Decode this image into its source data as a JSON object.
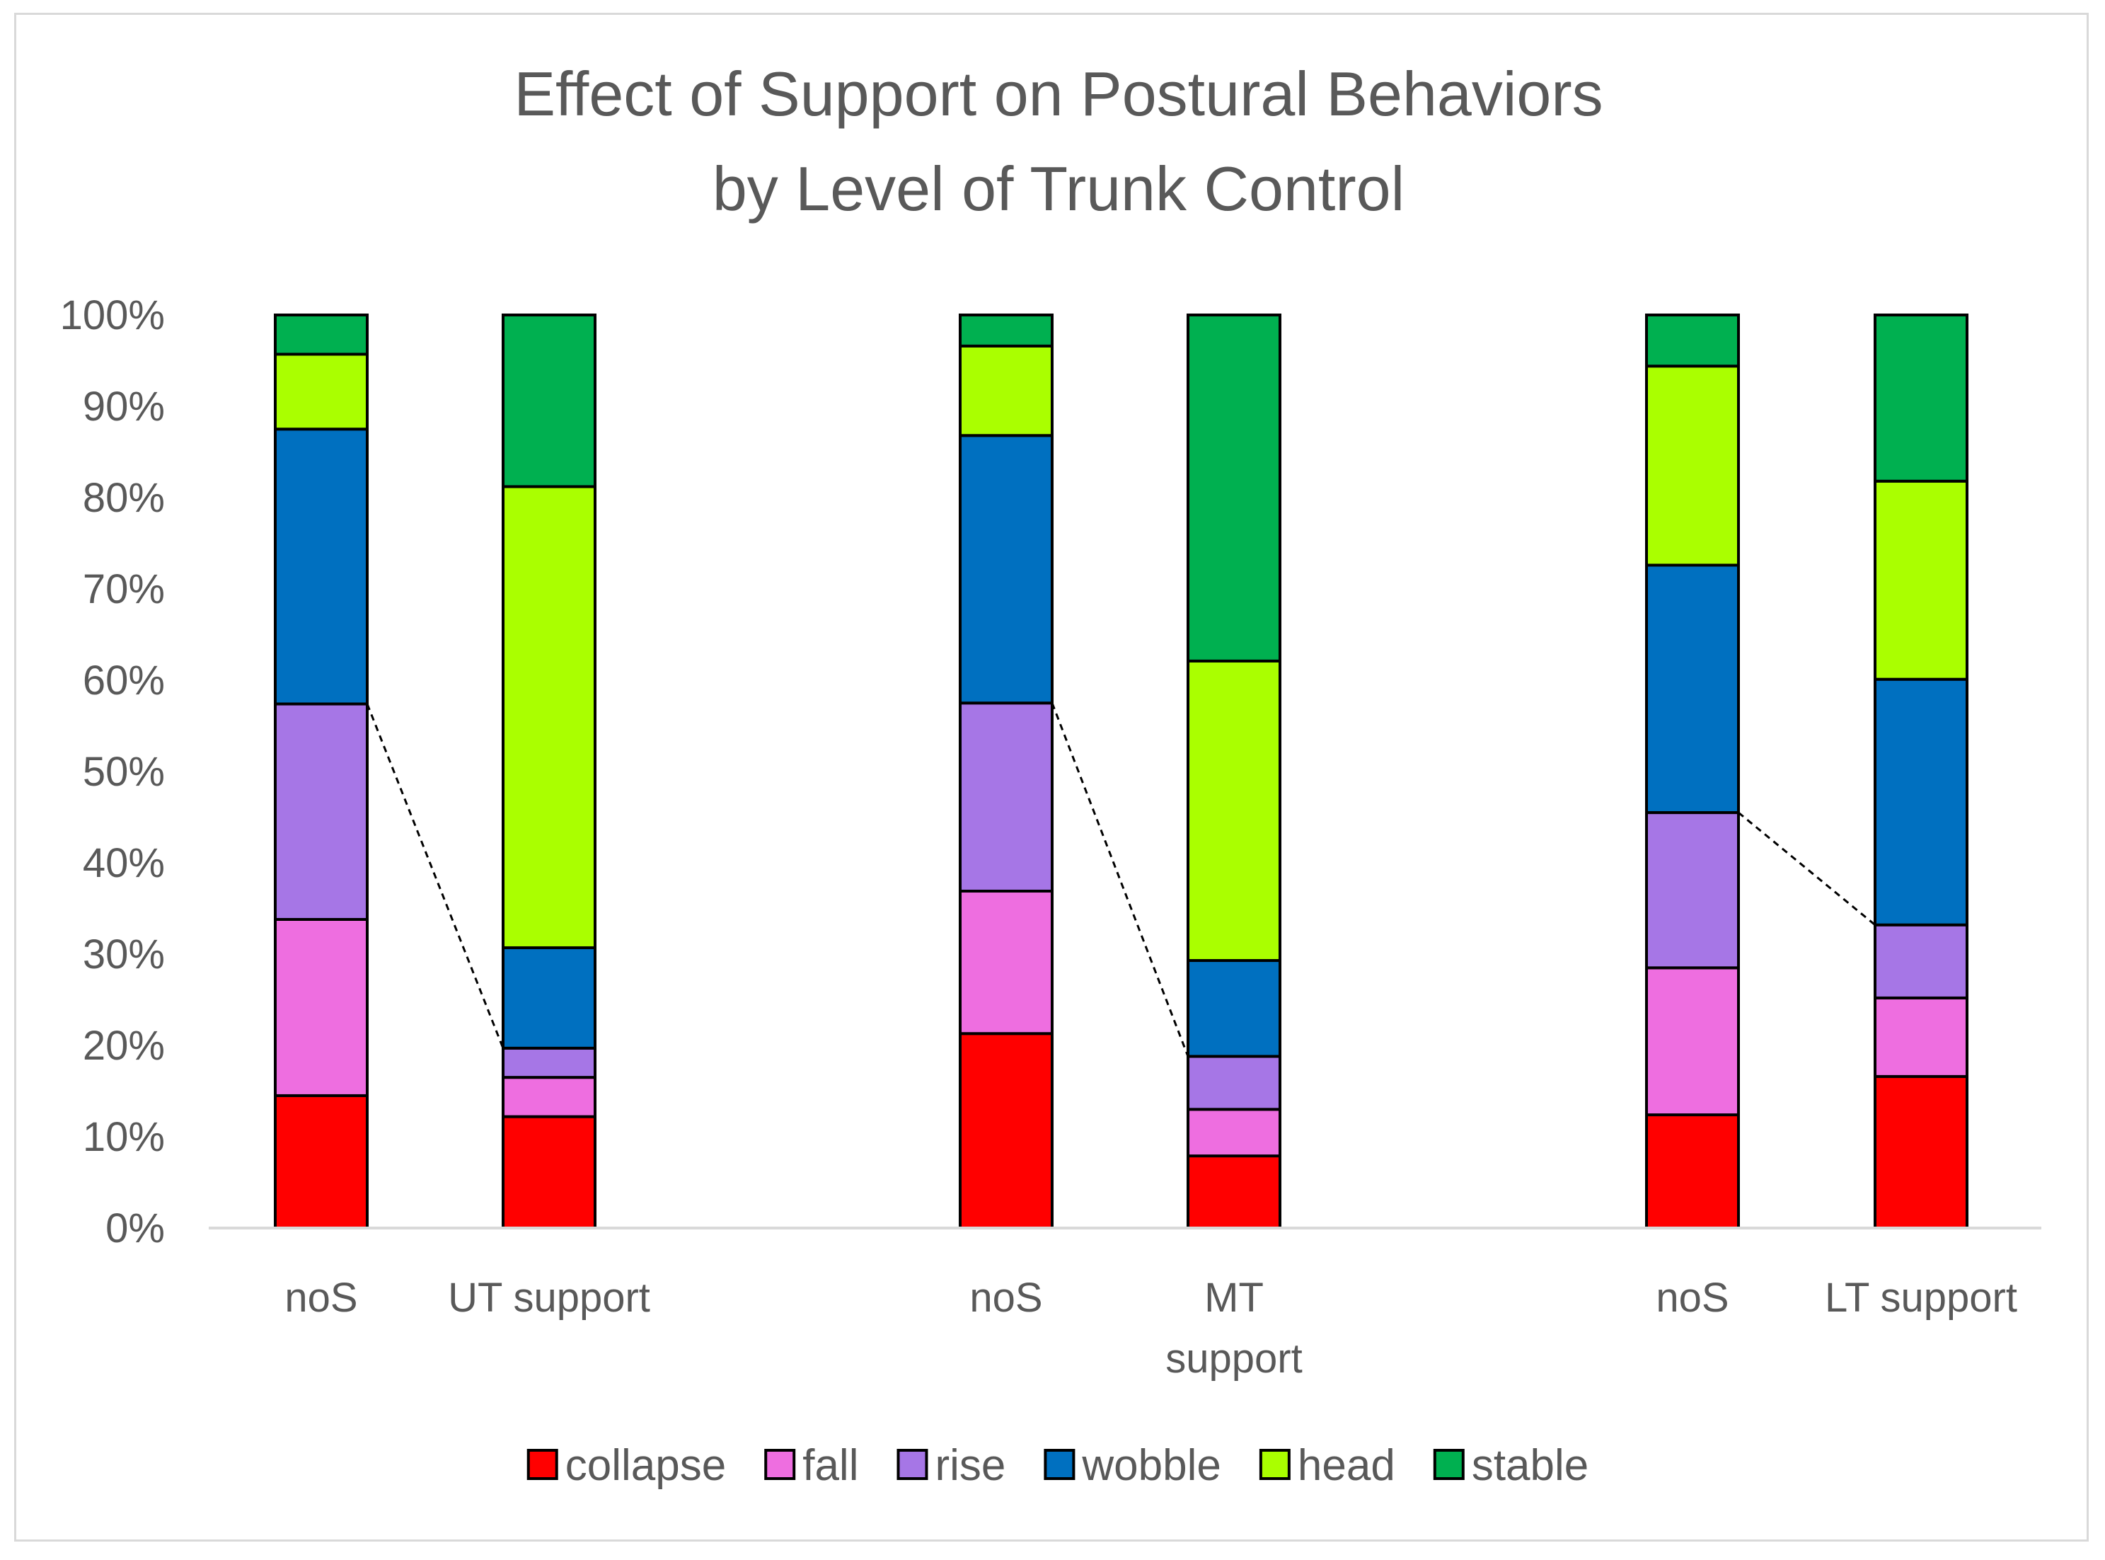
{
  "chart_data": {
    "type": "bar",
    "stacked": true,
    "normalized": true,
    "title": [
      "Effect of Support on Postural Behaviors",
      "by Level of Trunk Control"
    ],
    "ylim": [
      0,
      100
    ],
    "yticks": [
      "0%",
      "10%",
      "20%",
      "30%",
      "40%",
      "50%",
      "60%",
      "70%",
      "80%",
      "90%",
      "100%"
    ],
    "categories": [
      [
        "noS"
      ],
      [
        "UT support"
      ],
      [
        "noS"
      ],
      [
        "MT",
        "support"
      ],
      [
        "noS"
      ],
      [
        "LT support"
      ]
    ],
    "groups": [
      [
        0,
        1
      ],
      [
        2,
        3
      ],
      [
        4,
        5
      ]
    ],
    "series": [
      {
        "name": "collapse",
        "color": "#ff0000",
        "values": [
          14.5,
          12.2,
          21.3,
          7.9,
          12.4,
          16.6
        ]
      },
      {
        "name": "fall",
        "color": "#ee6ee0",
        "values": [
          19.3,
          4.3,
          15.6,
          5.1,
          16.1,
          8.6
        ]
      },
      {
        "name": "rise",
        "color": "#a676e6",
        "values": [
          23.6,
          3.2,
          20.6,
          5.8,
          17.0,
          8.0
        ]
      },
      {
        "name": "wobble",
        "color": "#0070c0",
        "values": [
          30.1,
          11.0,
          29.3,
          10.5,
          27.1,
          26.9
        ]
      },
      {
        "name": "head",
        "color": "#aaff00",
        "values": [
          8.2,
          50.5,
          9.8,
          32.8,
          21.8,
          21.7
        ]
      },
      {
        "name": "stable",
        "color": "#00b050",
        "values": [
          4.3,
          18.8,
          3.4,
          37.9,
          5.6,
          18.2
        ]
      }
    ],
    "connectors": [
      {
        "from_bar": 0,
        "from_level": 57.4,
        "to_bar": 1,
        "to_level": 19.7
      },
      {
        "from_bar": 2,
        "from_level": 57.5,
        "to_bar": 3,
        "to_level": 18.8
      },
      {
        "from_bar": 4,
        "from_level": 45.5,
        "to_bar": 5,
        "to_level": 33.2
      }
    ],
    "legend_position": "bottom"
  }
}
